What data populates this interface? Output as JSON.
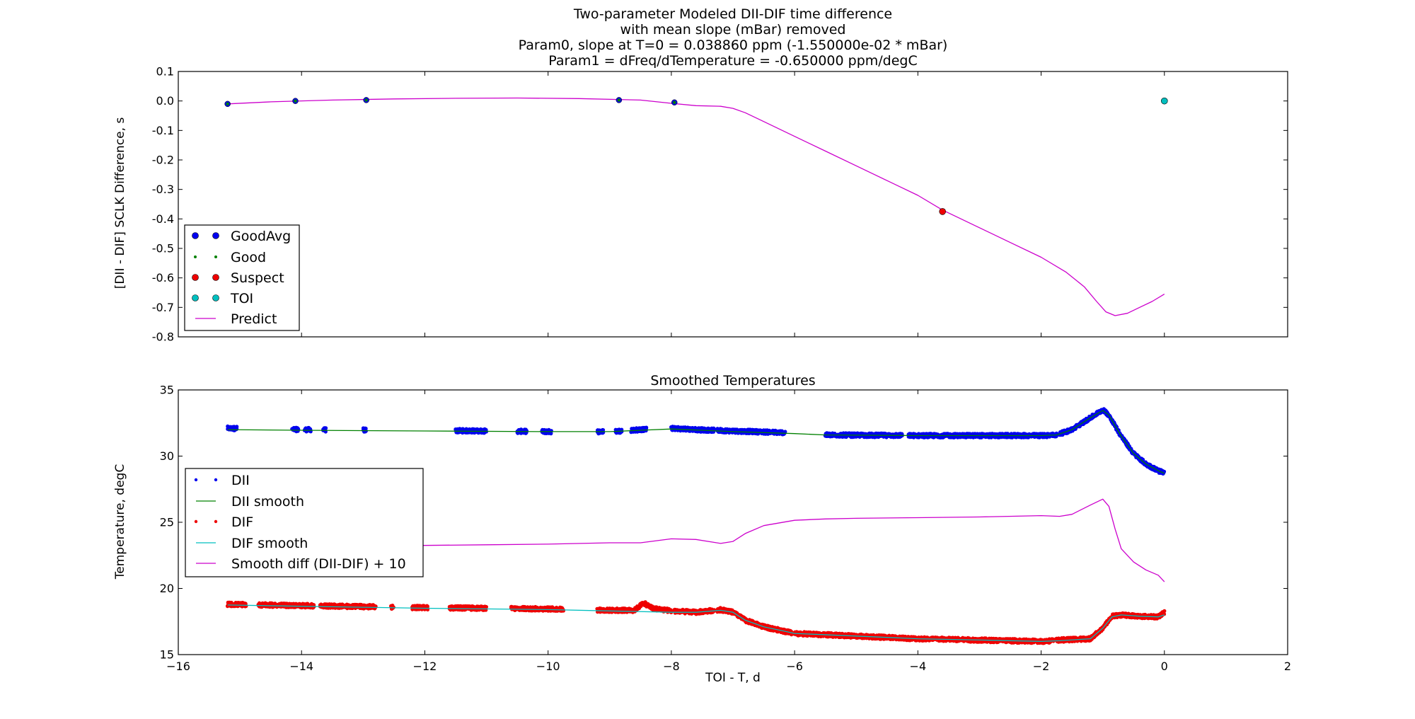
{
  "colors": {
    "good_avg": "#0000ee",
    "good": "#008000",
    "suspect": "#ee0000",
    "toi": "#00bfbf",
    "predict": "#cc00cc",
    "dii": "#0000ee",
    "dii_smooth": "#008000",
    "dif": "#ee0000",
    "dif_smooth": "#00bfbf",
    "smooth_diff": "#cc00cc"
  },
  "chart_data": [
    {
      "type": "line",
      "title_lines": [
        "Two-parameter Modeled DII-DIF time difference",
        "with mean slope (mBar) removed",
        "Param0, slope at T=0 = 0.038860 ppm (-1.550000e-02 * mBar)",
        "Param1 = dFreq/dTemperature = -0.650000 ppm/degC"
      ],
      "xlabel": "",
      "ylabel": "[DII - DIF] SCLK Difference, s",
      "xlim": [
        -16,
        2
      ],
      "ylim": [
        -0.8,
        0.1
      ],
      "xticks": [
        -16,
        -14,
        -12,
        -10,
        -8,
        -6,
        -4,
        -2,
        0,
        2
      ],
      "yticks": [
        "0.1",
        "0.0",
        "-0.1",
        "-0.2",
        "-0.3",
        "-0.4",
        "-0.5",
        "-0.6",
        "-0.7",
        "-0.8"
      ],
      "legend_position": "lower-left",
      "legend": [
        "GoodAvg",
        "Good",
        "Suspect",
        "TOI",
        "Predict"
      ],
      "series": [
        {
          "name": "GoodAvg",
          "kind": "points",
          "x": [
            -15.2,
            -14.1,
            -12.95,
            -8.85,
            -7.95
          ],
          "y": [
            -0.01,
            0.0,
            0.003,
            0.003,
            -0.005
          ]
        },
        {
          "name": "Good",
          "kind": "points",
          "x": [
            -15.2,
            -14.1,
            -12.95,
            -8.85,
            -7.95
          ],
          "y": [
            -0.01,
            0.0,
            0.003,
            0.003,
            -0.005
          ]
        },
        {
          "name": "Suspect",
          "kind": "points",
          "x": [
            -3.6
          ],
          "y": [
            -0.375
          ]
        },
        {
          "name": "TOI",
          "kind": "points",
          "x": [
            0.0
          ],
          "y": [
            0.0
          ]
        },
        {
          "name": "Predict",
          "kind": "line",
          "x": [
            -15.2,
            -14.5,
            -13.5,
            -12.5,
            -11.5,
            -10.5,
            -9.5,
            -8.5,
            -8.0,
            -7.6,
            -7.2,
            -7.0,
            -6.8,
            -6.5,
            -6.0,
            -5.5,
            -5.0,
            -4.5,
            -4.0,
            -3.6,
            -3.0,
            -2.5,
            -2.0,
            -1.6,
            -1.3,
            -1.1,
            -0.95,
            -0.8,
            -0.6,
            -0.4,
            -0.2,
            0.0
          ],
          "y": [
            -0.01,
            -0.003,
            0.003,
            0.007,
            0.009,
            0.01,
            0.008,
            0.003,
            -0.008,
            -0.016,
            -0.018,
            -0.025,
            -0.04,
            -0.07,
            -0.12,
            -0.17,
            -0.22,
            -0.27,
            -0.32,
            -0.37,
            -0.43,
            -0.48,
            -0.53,
            -0.58,
            -0.63,
            -0.68,
            -0.715,
            -0.728,
            -0.72,
            -0.7,
            -0.68,
            -0.655
          ]
        }
      ]
    },
    {
      "type": "line",
      "title": "Smoothed Temperatures",
      "xlabel": "TOI - T, d",
      "ylabel": "Temperature, degC",
      "xlim": [
        -16,
        2
      ],
      "ylim": [
        15,
        35
      ],
      "xticks": [
        "−16",
        "−14",
        "−12",
        "−10",
        "−8",
        "−6",
        "−4",
        "−2",
        "0",
        "2"
      ],
      "yticks": [
        "35",
        "30",
        "25",
        "20",
        "15"
      ],
      "legend_position": "middle-left",
      "legend": [
        "DII",
        "DII smooth",
        "DIF",
        "DIF smooth",
        "Smooth diff (DII-DIF) + 10"
      ],
      "series": [
        {
          "name": "DII",
          "kind": "points",
          "segments": [
            [
              -15.2,
              -15.05
            ],
            [
              -14.15,
              -14.05
            ],
            [
              -13.95,
              -13.85
            ],
            [
              -13.65,
              -13.6
            ],
            [
              -13.0,
              -12.95
            ],
            [
              -11.5,
              -11.0
            ],
            [
              -10.5,
              -10.35
            ],
            [
              -10.1,
              -9.95
            ],
            [
              -9.2,
              -9.1
            ],
            [
              -8.9,
              -8.8
            ],
            [
              -8.65,
              -8.4
            ],
            [
              -8.0,
              -7.3
            ],
            [
              -7.25,
              -6.15
            ],
            [
              -5.5,
              -4.25
            ],
            [
              -4.15,
              -1.75
            ],
            [
              -1.7,
              0.0
            ]
          ],
          "profile": {
            "x": [
              -15.2,
              -14.0,
              -11.0,
              -10.0,
              -9.0,
              -8.5,
              -8.0,
              -7.6,
              -7.0,
              -6.0,
              -5.5,
              -4.0,
              -2.0,
              -1.75,
              -1.5,
              -1.2,
              -1.0,
              -0.9,
              -0.7,
              -0.5,
              -0.3,
              -0.1,
              0.0
            ],
            "y": [
              32.1,
              32.0,
              31.9,
              31.85,
              31.85,
              32.0,
              32.1,
              32.0,
              31.9,
              31.75,
              31.6,
              31.55,
              31.55,
              31.6,
              32.0,
              32.9,
              33.5,
              33.1,
              31.5,
              30.2,
              29.4,
              28.9,
              28.7
            ]
          },
          "scatter": 0.15
        },
        {
          "name": "DII smooth",
          "kind": "line",
          "x": [
            -15.2,
            -14.0,
            -12.0,
            -10.0,
            -9.0,
            -8.5,
            -8.0,
            -7.5,
            -7.0,
            -6.0,
            -5.5,
            -4.0,
            -2.0,
            -1.75,
            -1.5,
            -1.2,
            -1.0,
            -0.9,
            -0.7,
            -0.5,
            -0.3,
            -0.1,
            0.0
          ],
          "y": [
            32.0,
            31.95,
            31.9,
            31.85,
            31.85,
            31.95,
            32.05,
            31.95,
            31.85,
            31.7,
            31.6,
            31.55,
            31.55,
            31.6,
            32.0,
            32.9,
            33.45,
            33.1,
            31.5,
            30.2,
            29.4,
            28.9,
            28.7
          ]
        },
        {
          "name": "DIF",
          "kind": "points",
          "segments": [
            [
              -15.2,
              -14.9
            ],
            [
              -14.7,
              -13.8
            ],
            [
              -13.7,
              -12.8
            ],
            [
              -12.55,
              -12.5
            ],
            [
              -12.2,
              -11.95
            ],
            [
              -11.6,
              -11.0
            ],
            [
              -10.6,
              -9.75
            ],
            [
              -9.2,
              -8.0
            ],
            [
              -7.95,
              -7.3
            ],
            [
              -7.25,
              -6.05
            ],
            [
              -6.0,
              -1.8
            ],
            [
              -1.75,
              0.0
            ]
          ],
          "profile": {
            "x": [
              -15.2,
              -14.0,
              -12.0,
              -10.0,
              -9.0,
              -8.6,
              -8.45,
              -8.3,
              -8.0,
              -7.6,
              -7.2,
              -7.0,
              -6.8,
              -6.5,
              -6.2,
              -6.0,
              -5.0,
              -4.0,
              -3.0,
              -2.0,
              -1.7,
              -1.2,
              -1.0,
              -0.85,
              -0.7,
              -0.4,
              -0.1,
              0.0
            ],
            "y": [
              18.8,
              18.7,
              18.55,
              18.45,
              18.35,
              18.35,
              18.9,
              18.5,
              18.3,
              18.2,
              18.4,
              18.2,
              17.6,
              17.1,
              16.8,
              16.6,
              16.4,
              16.2,
              16.1,
              16.0,
              16.1,
              16.2,
              17.0,
              17.9,
              18.0,
              17.9,
              17.85,
              18.2
            ]
          },
          "scatter": 0.15
        },
        {
          "name": "DIF smooth",
          "kind": "line",
          "x": [
            -15.2,
            -14.0,
            -12.0,
            -10.0,
            -9.0,
            -8.0,
            -7.6,
            -7.2,
            -7.0,
            -6.8,
            -6.5,
            -6.2,
            -6.0,
            -5.0,
            -4.0,
            -3.0,
            -2.0,
            -1.7,
            -1.2,
            -1.0,
            -0.85,
            -0.7,
            -0.4,
            -0.1,
            0.0
          ],
          "y": [
            18.75,
            18.65,
            18.5,
            18.4,
            18.3,
            18.2,
            18.2,
            18.35,
            18.2,
            17.6,
            17.1,
            16.8,
            16.6,
            16.4,
            16.2,
            16.1,
            16.0,
            16.05,
            16.2,
            17.0,
            17.85,
            18.0,
            17.9,
            17.85,
            18.0
          ]
        },
        {
          "name": "Smooth diff (DII-DIF) + 10",
          "kind": "line",
          "x": [
            -13.0,
            -12.0,
            -11.0,
            -10.0,
            -9.0,
            -8.5,
            -8.0,
            -7.6,
            -7.2,
            -7.0,
            -6.8,
            -6.5,
            -6.0,
            -5.5,
            -5.0,
            -4.0,
            -3.0,
            -2.0,
            -1.7,
            -1.5,
            -1.2,
            -1.0,
            -0.9,
            -0.8,
            -0.7,
            -0.5,
            -0.3,
            -0.1,
            0.0
          ],
          "y": [
            23.2,
            23.25,
            23.3,
            23.35,
            23.45,
            23.45,
            23.75,
            23.7,
            23.4,
            23.55,
            24.15,
            24.75,
            25.15,
            25.25,
            25.3,
            25.35,
            25.4,
            25.5,
            25.45,
            25.6,
            26.3,
            26.75,
            26.2,
            24.5,
            23.0,
            22.0,
            21.4,
            21.0,
            20.5
          ]
        }
      ]
    }
  ]
}
